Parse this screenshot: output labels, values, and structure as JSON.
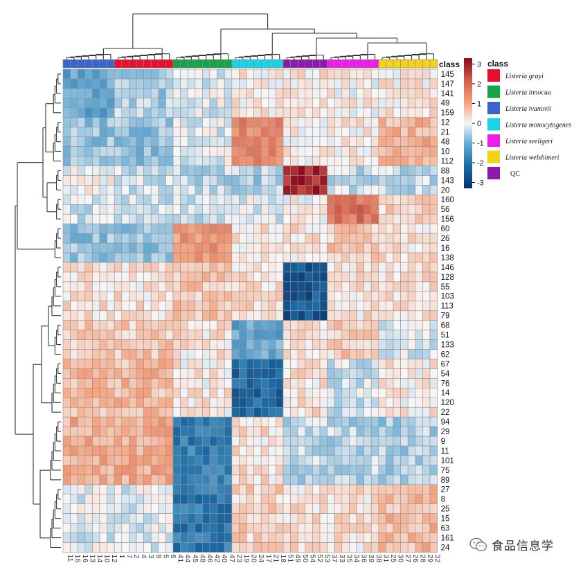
{
  "chart_data": {
    "type": "heatmap",
    "title": "",
    "annotation_title": "class",
    "legend_title": "class",
    "colorbar": {
      "min": -3.3,
      "max": 3.3,
      "ticks": [
        3,
        2,
        1,
        0,
        -1,
        -2,
        -3
      ],
      "colors": [
        "#08306b",
        "#1c6fa8",
        "#6aaed6",
        "#f7f7f7",
        "#f4a582",
        "#d6604d",
        "#8b0a1d"
      ]
    },
    "classes": [
      {
        "name": "Listeria grayi",
        "color": "#e8102f"
      },
      {
        "name": "Listeria innocua",
        "color": "#16a34a"
      },
      {
        "name": "Listeria ivanovii",
        "color": "#3a66cc"
      },
      {
        "name": "Listeria monocytogenes",
        "color": "#19d3e6"
      },
      {
        "name": "Listeria seeligeri",
        "color": "#ee1ee8"
      },
      {
        "name": "Listeria welshimeri",
        "color": "#f2d21a"
      },
      {
        "name": "QC",
        "color": "#8e1ba8"
      }
    ],
    "columns": [
      "11",
      "15",
      "16",
      "13",
      "14",
      "10",
      "12",
      "1",
      "7",
      "2",
      "4",
      "3",
      "8",
      "5",
      "6",
      "41",
      "44",
      "45",
      "48",
      "46",
      "42",
      "40",
      "47",
      "23",
      "19",
      "20",
      "24",
      "17",
      "21",
      "18",
      "51",
      "49",
      "50",
      "54",
      "52",
      "53",
      "37",
      "33",
      "35",
      "34",
      "36",
      "39",
      "38",
      "31",
      "25",
      "30",
      "27",
      "26",
      "28",
      "29",
      "32"
    ],
    "column_classes": [
      "Listeria ivanovii",
      "Listeria ivanovii",
      "Listeria ivanovii",
      "Listeria ivanovii",
      "Listeria ivanovii",
      "Listeria ivanovii",
      "Listeria ivanovii",
      "Listeria grayi",
      "Listeria grayi",
      "Listeria grayi",
      "Listeria grayi",
      "Listeria grayi",
      "Listeria grayi",
      "Listeria grayi",
      "Listeria grayi",
      "Listeria innocua",
      "Listeria innocua",
      "Listeria innocua",
      "Listeria innocua",
      "Listeria innocua",
      "Listeria innocua",
      "Listeria innocua",
      "Listeria innocua",
      "Listeria monocytogenes",
      "Listeria monocytogenes",
      "Listeria monocytogenes",
      "Listeria monocytogenes",
      "Listeria monocytogenes",
      "Listeria monocytogenes",
      "Listeria monocytogenes",
      "QC",
      "QC",
      "QC",
      "QC",
      "QC",
      "QC",
      "Listeria seeligeri",
      "Listeria seeligeri",
      "Listeria seeligeri",
      "Listeria seeligeri",
      "Listeria seeligeri",
      "Listeria seeligeri",
      "Listeria seeligeri",
      "Listeria welshimeri",
      "Listeria welshimeri",
      "Listeria welshimeri",
      "Listeria welshimeri",
      "Listeria welshimeri",
      "Listeria welshimeri",
      "Listeria welshimeri",
      "Listeria welshimeri"
    ],
    "rows": [
      "145",
      "147",
      "141",
      "49",
      "159",
      "12",
      "21",
      "48",
      "10",
      "112",
      "88",
      "143",
      "20",
      "160",
      "56",
      "156",
      "60",
      "26",
      "16",
      "138",
      "146",
      "128",
      "55",
      "103",
      "113",
      "79",
      "68",
      "51",
      "133",
      "62",
      "67",
      "54",
      "76",
      "14",
      "120",
      "22",
      "94",
      "29",
      "9",
      "11",
      "101",
      "75",
      "89",
      "27",
      "8",
      "25",
      "15",
      "63",
      "161",
      "24"
    ],
    "row_blocks": [
      {
        "rows": 5,
        "values": [
          -1.2,
          -0.6,
          -0.2,
          0.2,
          0.3,
          0.1,
          0.2
        ]
      },
      {
        "rows": 5,
        "values": [
          -0.8,
          -0.8,
          -0.2,
          1.6,
          0.2,
          0.2,
          0.9
        ]
      },
      {
        "rows": 3,
        "values": [
          0.0,
          -0.3,
          -0.5,
          -0.6,
          2.9,
          -0.4,
          -0.4
        ]
      },
      {
        "rows": 3,
        "values": [
          -0.3,
          -0.3,
          -0.3,
          -0.2,
          0.1,
          1.9,
          0.5
        ]
      },
      {
        "rows": 4,
        "values": [
          -0.8,
          -0.8,
          1.3,
          0.3,
          0.3,
          0.6,
          0.3
        ]
      },
      {
        "rows": 6,
        "values": [
          0.3,
          0.3,
          0.6,
          0.3,
          -2.6,
          0.3,
          0.3
        ]
      },
      {
        "rows": 4,
        "values": [
          0.6,
          0.6,
          0.3,
          -1.2,
          0.2,
          0.6,
          -0.3
        ]
      },
      {
        "rows": 6,
        "values": [
          0.8,
          0.8,
          0.2,
          -2.3,
          0.3,
          -0.3,
          0.2
        ]
      },
      {
        "rows": 7,
        "values": [
          1.0,
          1.0,
          -1.9,
          0.3,
          -0.5,
          -0.5,
          -0.6
        ]
      },
      {
        "rows": 7,
        "values": [
          -0.2,
          -0.2,
          -2.0,
          0.5,
          0.3,
          0.3,
          0.8
        ]
      }
    ],
    "watermark": "食品信息学"
  }
}
